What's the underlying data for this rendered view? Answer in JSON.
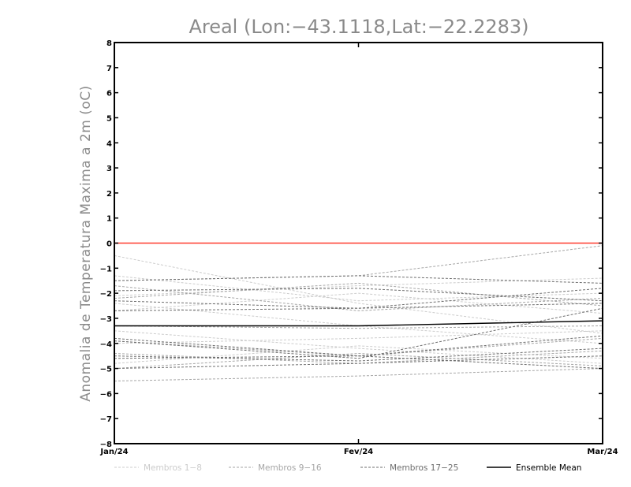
{
  "chart_data": {
    "type": "line",
    "title": "Areal (Lon:−43.1118,Lat:−22.2283)",
    "ylabel": "Anomalia de Temperatura Maxima a 2m (oC)",
    "xlabel": "",
    "categories": [
      "Jan/24",
      "Fev/24",
      "Mar/24"
    ],
    "ylim": [
      -8,
      8
    ],
    "yticks": [
      8,
      7,
      6,
      5,
      4,
      3,
      2,
      1,
      0,
      -1,
      -2,
      -3,
      -4,
      -5,
      -6,
      -7,
      -8
    ],
    "ytick_labels": [
      "8",
      "7",
      "6",
      "5",
      "4",
      "3",
      "2",
      "1",
      "0",
      "−1",
      "−2",
      "−3",
      "−4",
      "−5",
      "−6",
      "−7",
      "−8"
    ],
    "reference_line": {
      "y": 0,
      "color": "#ff3b2f"
    },
    "legend_placement": "bottom",
    "groups": [
      {
        "label": "Membros 1−8",
        "color": "#cccccc",
        "dash": "3,2"
      },
      {
        "label": "Membros 9−16",
        "color": "#a6a6a6",
        "dash": "3,2"
      },
      {
        "label": "Membros 17−25",
        "color": "#6e6e6e",
        "dash": "3,2"
      },
      {
        "label": "Ensemble Mean",
        "color": "#000000",
        "dash": ""
      }
    ],
    "series": [
      {
        "group": 0,
        "values": [
          -0.5,
          -2.4,
          -3.6
        ]
      },
      {
        "group": 0,
        "values": [
          -1.3,
          -2.3,
          -2.0
        ]
      },
      {
        "group": 0,
        "values": [
          -2.1,
          -1.7,
          -1.4
        ]
      },
      {
        "group": 0,
        "values": [
          -2.4,
          -3.3,
          -4.0
        ]
      },
      {
        "group": 0,
        "values": [
          -3.5,
          -4.2,
          -4.8
        ]
      },
      {
        "group": 0,
        "values": [
          -4.0,
          -3.8,
          -3.5
        ]
      },
      {
        "group": 0,
        "values": [
          -4.8,
          -4.1,
          -4.6
        ]
      },
      {
        "group": 0,
        "values": [
          -2.7,
          -2.0,
          -2.8
        ]
      },
      {
        "group": 1,
        "values": [
          -1.5,
          -1.3,
          -0.1
        ]
      },
      {
        "group": 1,
        "values": [
          -1.7,
          -2.7,
          -2.2
        ]
      },
      {
        "group": 1,
        "values": [
          -2.2,
          -1.6,
          -2.5
        ]
      },
      {
        "group": 1,
        "values": [
          -3.3,
          -3.4,
          -3.3
        ]
      },
      {
        "group": 1,
        "values": [
          -3.9,
          -4.5,
          -3.8
        ]
      },
      {
        "group": 1,
        "values": [
          -4.4,
          -4.8,
          -4.3
        ]
      },
      {
        "group": 1,
        "values": [
          -5.0,
          -4.4,
          -4.9
        ]
      },
      {
        "group": 1,
        "values": [
          -5.5,
          -5.3,
          -5.0
        ]
      },
      {
        "group": 2,
        "values": [
          -1.5,
          -1.3,
          -1.6
        ]
      },
      {
        "group": 2,
        "values": [
          -1.9,
          -1.8,
          -2.3
        ]
      },
      {
        "group": 2,
        "values": [
          -2.3,
          -2.6,
          -2.4
        ]
      },
      {
        "group": 2,
        "values": [
          -2.7,
          -2.6,
          -1.8
        ]
      },
      {
        "group": 2,
        "values": [
          -3.8,
          -4.5,
          -3.7
        ]
      },
      {
        "group": 2,
        "values": [
          -3.9,
          -4.6,
          -2.6
        ]
      },
      {
        "group": 2,
        "values": [
          -4.5,
          -4.7,
          -4.2
        ]
      },
      {
        "group": 2,
        "values": [
          -4.6,
          -4.5,
          -5.0
        ]
      },
      {
        "group": 2,
        "values": [
          -5.0,
          -4.8,
          -4.5
        ]
      },
      {
        "group": 3,
        "values": [
          -3.3,
          -3.3,
          -3.1
        ]
      }
    ]
  }
}
